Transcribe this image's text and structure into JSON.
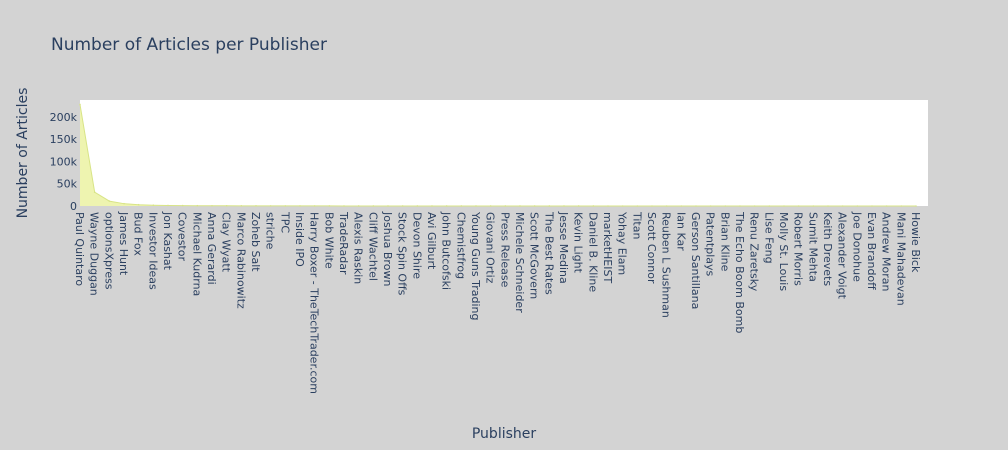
{
  "chart_data": {
    "type": "area",
    "title": "Number of Articles per Publisher",
    "xlabel": "Publisher",
    "ylabel": "Number of Articles",
    "ylim": [
      0,
      238000
    ],
    "yticks": [
      0,
      50000,
      100000,
      150000,
      200000
    ],
    "ytick_labels": [
      "0",
      "50k",
      "100k",
      "150k",
      "200k"
    ],
    "grid": false,
    "colors": {
      "area_fill": "#eef4b0",
      "area_line": "#d8e487",
      "plot_bg": "#ffffff",
      "paper_bg": "#d3d3d3"
    },
    "categories": [
      "Paul Quintaro",
      "Wayne Duggan",
      "optionsXpress",
      "James Hunt",
      "Bud Fox",
      "Investor Ideas",
      "Jon Kashat",
      "Covestor",
      "Michael Kudrna",
      "Anna Gerardi",
      "Clay Wyatt",
      "Marco Rabinowitz",
      "Zoheb Salt",
      "striche",
      "TPC",
      "Inside IPO",
      "Harry Boxer - TheTechTrader.com",
      "Bob White",
      "TradeRadar",
      "Alexis Raskin",
      "Cliff Wachtel",
      "Joshua Brown",
      "Stock Spin Offs",
      "Devon Shire",
      "Avi Gilburt",
      "John Butcofski",
      "Chemistfrog",
      "Young Guns Trading",
      "Giovani Ortiz",
      "Press Release",
      "Michele Schneider",
      "Scott McGovern",
      "The Best Rates",
      "Jesse Medina",
      "Kevin Light",
      "Daniel B. Kline",
      "marketHEIST",
      "Yohay Elam",
      "Titan",
      "Scott Connor",
      "Reuben L Sushman",
      "Ian Kar",
      "Gerson Santillana",
      "Patentplays",
      "Brian Kline",
      "The Echo Boom Bomb",
      "Renu Zaretsky",
      "Lise Feng",
      "Molly St. Louis",
      "Robert Morris",
      "Sumit Mehta",
      "Keith Drevets",
      "Alexander Voigt",
      "Joe Donohue",
      "Evan Brandoff",
      "Andrew Moran",
      "Mani Mahadevan",
      "Howie Bick"
    ],
    "values": [
      228000,
      31000,
      11000,
      5200,
      2900,
      1800,
      1200,
      900,
      700,
      560,
      460,
      380,
      320,
      270,
      230,
      200,
      175,
      155,
      138,
      124,
      112,
      101,
      92,
      84,
      77,
      71,
      65,
      60,
      56,
      52,
      48,
      45,
      42,
      39,
      37,
      35,
      33,
      31,
      29,
      27,
      26,
      24,
      23,
      22,
      21,
      20,
      19,
      18,
      17,
      16,
      15,
      14,
      13,
      12,
      11,
      10,
      9,
      8
    ]
  }
}
